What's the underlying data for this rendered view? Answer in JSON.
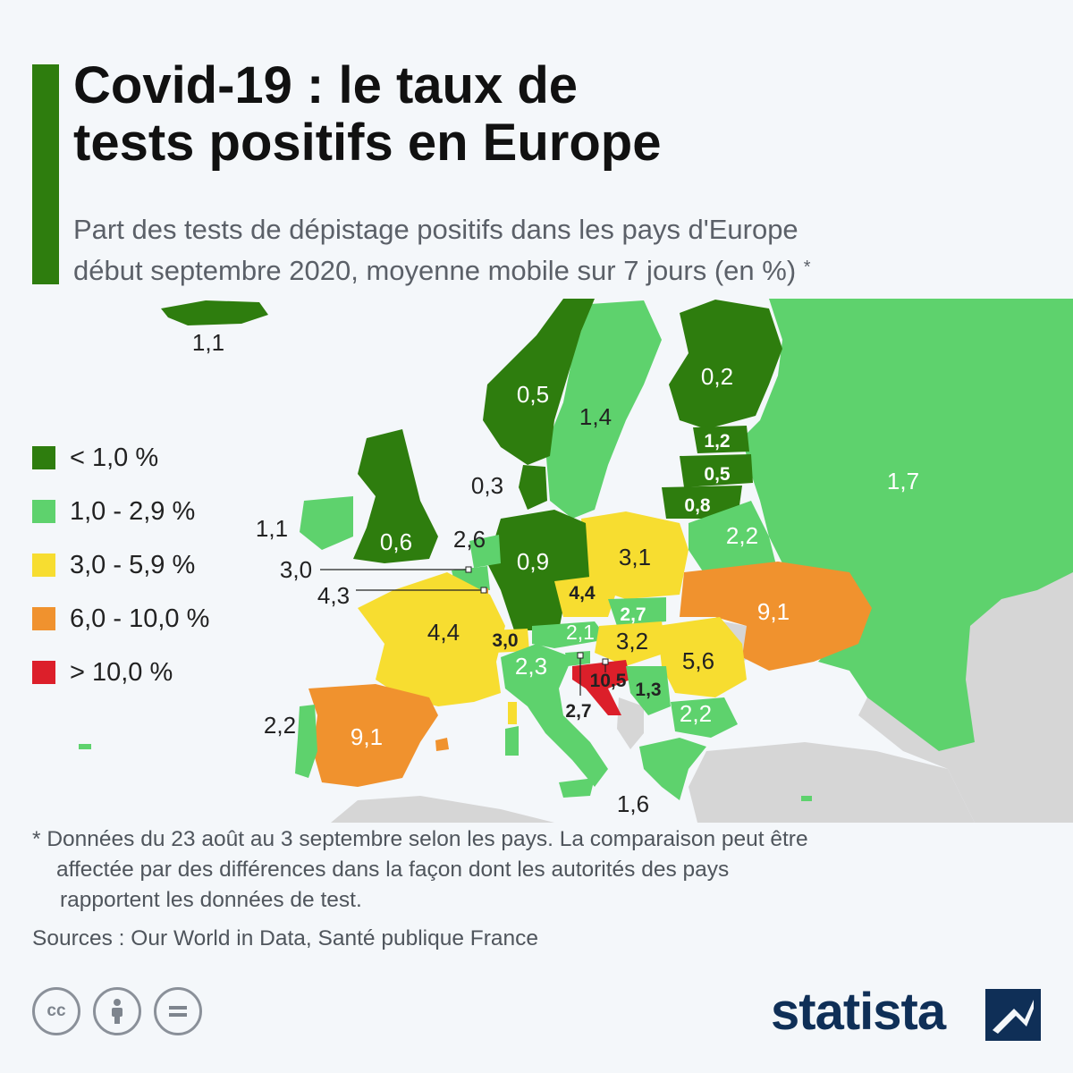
{
  "header": {
    "title_line1": "Covid-19 : le taux de",
    "title_line2": "tests positifs en Europe",
    "subtitle_line1": "Part des tests de dépistage positifs dans les pays d'Europe",
    "subtitle_line2": "début septembre 2020, moyenne mobile sur 7 jours (en %)",
    "subtitle_mark": "*"
  },
  "colors": {
    "accent": "#2e7d0e",
    "dark_green": "#2e7d0e",
    "light_green": "#5ed26d",
    "yellow": "#f7dd30",
    "orange": "#f0922e",
    "red": "#dc1f2a",
    "no_data": "#d6d6d6",
    "background": "#f4f7fa"
  },
  "legend": [
    {
      "label": "< 1,0 %",
      "color": "#2e7d0e"
    },
    {
      "label": "1,0 - 2,9 %",
      "color": "#5ed26d"
    },
    {
      "label": "3,0 - 5,9 %",
      "color": "#f7dd30"
    },
    {
      "label": "6,0 - 10,0 %",
      "color": "#f0922e"
    },
    {
      "label": "> 10,0 %",
      "color": "#dc1f2a"
    }
  ],
  "map": {
    "values": {
      "iceland": "1,1",
      "norway": "0,5",
      "sweden": "1,4",
      "finland": "0,2",
      "russia": "1,7",
      "estonia": "1,2",
      "latvia": "0,5",
      "lithuania": "0,8",
      "denmark": "0,3",
      "ireland": "1,1",
      "uk": "0,6",
      "netherlands": "2,6",
      "belgium": "3,0",
      "luxembourg": "4,3",
      "germany": "0,9",
      "poland": "3,1",
      "belarus": "2,2",
      "ukraine": "9,1",
      "czechia": "4,4",
      "slovakia": "2,7",
      "france": "4,4",
      "switzerland": "3,0",
      "austria": "2,1",
      "hungary": "3,2",
      "romania": "5,6",
      "italy": "2,3",
      "slovenia": "2,7",
      "croatia": "10,5",
      "serbia": "1,3",
      "bulgaria": "2,2",
      "portugal": "2,2",
      "spain": "9,1",
      "greece": "1,6"
    }
  },
  "footer": {
    "note_line1": "* Données du 23 août au 3 septembre selon les pays. La comparaison peut être",
    "note_line2": "affectée par des différences dans la façon dont les autorités des pays",
    "note_line3": "rapportent les données de test.",
    "sources": "Sources : Our World in Data, Santé publique France",
    "brand": "statista",
    "license_icons": [
      "cc-icon",
      "by-icon",
      "nd-icon"
    ]
  }
}
